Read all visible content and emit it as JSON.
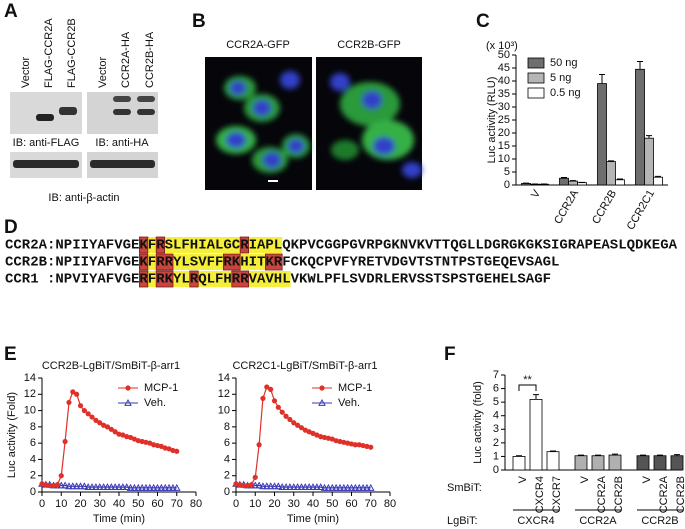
{
  "panels": [
    "A",
    "B",
    "C",
    "D",
    "E",
    "F"
  ],
  "blot": {
    "columns": [
      [
        "Vector",
        "FLAG-CCR2A",
        "FLAG-CCR2B"
      ],
      [
        "Vector",
        "CCR2A-HA",
        "CCR2B-HA"
      ]
    ],
    "probes": [
      "IB: anti-FLAG",
      "IB: anti-HA"
    ],
    "loading": "IB: anti-β-actin"
  },
  "images": [
    "CCR2A-GFP",
    "CCR2B-GFP"
  ],
  "alignment": {
    "colors": {
      "yellow": "#f5ee3a",
      "red": "#c9453d",
      "blue": "#2aa6d6"
    },
    "rows": [
      {
        "label": "CCR2A:",
        "segments": [
          {
            "text": "NPIIYAFVGE",
            "style": "plain"
          },
          {
            "text": "K",
            "style": "red"
          },
          {
            "text": "F",
            "style": "yellow"
          },
          {
            "text": "R",
            "style": "red"
          },
          {
            "text": "SLFHIALGC",
            "style": "yellow"
          },
          {
            "text": "R",
            "style": "red"
          },
          {
            "text": "IAPL",
            "style": "yellow"
          },
          {
            "text": "QKPVCGGPGVRPGKNVKV",
            "style": "plain"
          },
          {
            "text": "TT",
            "style": "blue"
          },
          {
            "text": "QGLLDGRGKGK",
            "style": "plain"
          },
          {
            "text": "S",
            "style": "blue"
          },
          {
            "text": "IGRAPEA",
            "style": "plain"
          },
          {
            "text": "S",
            "style": "blue"
          },
          {
            "text": "LQDKEGA",
            "style": "plain"
          }
        ]
      },
      {
        "label": "CCR2B:",
        "segments": [
          {
            "text": "NPIIYAFVGE",
            "style": "plain"
          },
          {
            "text": "K",
            "style": "red"
          },
          {
            "text": "F",
            "style": "yellow"
          },
          {
            "text": "RR",
            "style": "red"
          },
          {
            "text": "YLSVFF",
            "style": "yellow"
          },
          {
            "text": "RK",
            "style": "red"
          },
          {
            "text": "HIT",
            "style": "yellow"
          },
          {
            "text": "KR",
            "style": "red"
          },
          {
            "text": "FCKQCPVFYRETVDGV",
            "style": "plain"
          },
          {
            "text": "TST",
            "style": "blue"
          },
          {
            "text": "NTP",
            "style": "plain"
          },
          {
            "text": "S",
            "style": "blue"
          },
          {
            "text": "TGEQEV",
            "style": "plain"
          },
          {
            "text": "S",
            "style": "blue"
          },
          {
            "text": "AGL",
            "style": "plain"
          }
        ]
      },
      {
        "label": "CCR1 :",
        "segments": [
          {
            "text": "NPVIYAFVGE",
            "style": "plain"
          },
          {
            "text": "R",
            "style": "red"
          },
          {
            "text": "F",
            "style": "yellow"
          },
          {
            "text": "RK",
            "style": "red"
          },
          {
            "text": "YL",
            "style": "yellow"
          },
          {
            "text": "R",
            "style": "red"
          },
          {
            "text": "QLFH",
            "style": "yellow"
          },
          {
            "text": "RR",
            "style": "red"
          },
          {
            "text": "VAVHL",
            "style": "yellow"
          },
          {
            "text": "VKWLPFL",
            "style": "plain"
          },
          {
            "text": "S",
            "style": "blue"
          },
          {
            "text": "VDRLERV",
            "style": "plain"
          },
          {
            "text": "SSTS",
            "style": "blue"
          },
          {
            "text": "P",
            "style": "plain"
          },
          {
            "text": "ST",
            "style": "blue"
          },
          {
            "text": "GEHEL",
            "style": "plain"
          },
          {
            "text": "S",
            "style": "blue"
          },
          {
            "text": "AGF",
            "style": "plain"
          }
        ]
      }
    ]
  },
  "chart_data": [
    {
      "type": "bar",
      "ylabel": "Luc activity (RLU)",
      "unit": "(x 10³)",
      "categories": [
        "V",
        "CCR2A",
        "CCR2B",
        "CCR2C1"
      ],
      "series": [
        {
          "name": "50 ng",
          "color": "#6e6e6e",
          "values": [
            0.6,
            2.6,
            39,
            44.5
          ],
          "errors": [
            0.1,
            0.3,
            3.5,
            3
          ]
        },
        {
          "name": "5 ng",
          "color": "#b5b5b5",
          "values": [
            0.3,
            1.5,
            9,
            18
          ],
          "errors": [
            0.1,
            0.2,
            0.3,
            1
          ]
        },
        {
          "name": "0.5 ng",
          "color": "#ffffff",
          "values": [
            0.3,
            0.9,
            2,
            3
          ],
          "errors": [
            0.1,
            0.1,
            0.3,
            0.3
          ]
        }
      ],
      "ylim": [
        0,
        50
      ],
      "yticks": [
        0,
        5,
        10,
        15,
        20,
        25,
        30,
        35,
        40,
        45,
        50
      ],
      "legend": "upper left"
    },
    {
      "type": "line",
      "title": "CCR2B-LgBiT/SmBiT-β-arr1",
      "xlabel": "Time (min)",
      "ylabel": "Luc activity (Fold)",
      "x": [
        0,
        2,
        4,
        6,
        8,
        10,
        12,
        14,
        16,
        18,
        20,
        22,
        24,
        26,
        28,
        30,
        32,
        34,
        36,
        38,
        40,
        42,
        44,
        46,
        48,
        50,
        52,
        54,
        56,
        58,
        60,
        62,
        64,
        66,
        68,
        70
      ],
      "series": [
        {
          "name": "MCP-1",
          "color": "#e0302a",
          "marker": "circle",
          "values": [
            1.0,
            0.9,
            0.8,
            0.8,
            0.9,
            2.0,
            6.2,
            11.0,
            12.3,
            12.0,
            10.6,
            10.0,
            9.6,
            9.2,
            8.8,
            8.5,
            8.2,
            8.0,
            7.7,
            7.4,
            7.1,
            7.0,
            6.8,
            6.7,
            6.5,
            6.3,
            6.2,
            6.1,
            6.0,
            5.8,
            5.7,
            5.6,
            5.4,
            5.3,
            5.1,
            5.0
          ]
        },
        {
          "name": "Veh.",
          "color": "#3a3ab8",
          "marker": "triangle",
          "values": [
            1.0,
            0.9,
            0.9,
            0.8,
            0.8,
            0.8,
            0.8,
            0.7,
            0.7,
            0.7,
            0.7,
            0.7,
            0.6,
            0.6,
            0.6,
            0.6,
            0.6,
            0.6,
            0.6,
            0.6,
            0.6,
            0.6,
            0.6,
            0.5,
            0.5,
            0.5,
            0.5,
            0.5,
            0.5,
            0.5,
            0.5,
            0.5,
            0.5,
            0.5,
            0.5,
            0.5
          ]
        }
      ],
      "xlim": [
        0,
        80
      ],
      "xticks": [
        0,
        10,
        20,
        30,
        40,
        50,
        60,
        70,
        80
      ],
      "ylim": [
        0,
        14
      ],
      "yticks": [
        0,
        2,
        4,
        6,
        8,
        10,
        12,
        14
      ],
      "legend": "upper right"
    },
    {
      "type": "line",
      "title": "CCR2C1-LgBiT/SmBiT-β-arr1",
      "xlabel": "Time (min)",
      "x": [
        0,
        2,
        4,
        6,
        8,
        10,
        12,
        14,
        16,
        18,
        20,
        22,
        24,
        26,
        28,
        30,
        32,
        34,
        36,
        38,
        40,
        42,
        44,
        46,
        48,
        50,
        52,
        54,
        56,
        58,
        60,
        62,
        64,
        66,
        68,
        70
      ],
      "series": [
        {
          "name": "MCP-1",
          "color": "#e0302a",
          "marker": "circle",
          "values": [
            1.0,
            0.9,
            0.8,
            0.8,
            0.9,
            1.8,
            5.8,
            11.5,
            12.9,
            12.6,
            11.2,
            10.4,
            9.8,
            9.3,
            8.9,
            8.5,
            8.2,
            7.9,
            7.6,
            7.4,
            7.2,
            7.0,
            6.8,
            6.7,
            6.6,
            6.5,
            6.3,
            6.2,
            6.1,
            6.0,
            5.9,
            5.8,
            5.8,
            5.7,
            5.6,
            5.5
          ]
        },
        {
          "name": "Veh.",
          "color": "#3a3ab8",
          "marker": "triangle",
          "values": [
            1.0,
            0.9,
            0.9,
            0.8,
            0.8,
            0.8,
            0.8,
            0.7,
            0.7,
            0.7,
            0.7,
            0.7,
            0.6,
            0.6,
            0.6,
            0.6,
            0.6,
            0.6,
            0.6,
            0.6,
            0.6,
            0.6,
            0.6,
            0.5,
            0.5,
            0.5,
            0.5,
            0.5,
            0.5,
            0.5,
            0.5,
            0.5,
            0.5,
            0.5,
            0.5,
            0.5
          ]
        }
      ],
      "xlim": [
        0,
        80
      ],
      "xticks": [
        0,
        10,
        20,
        30,
        40,
        50,
        60,
        70,
        80
      ],
      "ylim": [
        0,
        14
      ],
      "yticks": [
        0,
        2,
        4,
        6,
        8,
        10,
        12,
        14
      ],
      "legend": "upper right"
    },
    {
      "type": "bar",
      "ylabel": "Luc activity (fold)",
      "row_labels": [
        "SmBiT:",
        "LgBiT:"
      ],
      "annotation": "**",
      "groups": [
        {
          "name": "CXCR4",
          "color": "#ffffff",
          "categories": [
            "V",
            "CXCR4",
            "CXCR7"
          ],
          "values": [
            1.0,
            5.2,
            1.35
          ],
          "errors": [
            0.05,
            0.35,
            0.05
          ]
        },
        {
          "name": "CCR2A",
          "color": "#b0b0b0",
          "categories": [
            "V",
            "CCR2A",
            "CCR2B"
          ],
          "values": [
            1.05,
            1.05,
            1.1
          ],
          "errors": [
            0.05,
            0.05,
            0.07
          ]
        },
        {
          "name": "CCR2B",
          "color": "#555555",
          "categories": [
            "V",
            "CCR2A",
            "CCR2B"
          ],
          "values": [
            1.05,
            1.05,
            1.05
          ],
          "errors": [
            0.05,
            0.05,
            0.08
          ]
        }
      ],
      "ylim": [
        0,
        7
      ],
      "yticks": [
        0,
        1,
        2,
        3,
        4,
        5,
        6,
        7
      ]
    }
  ]
}
